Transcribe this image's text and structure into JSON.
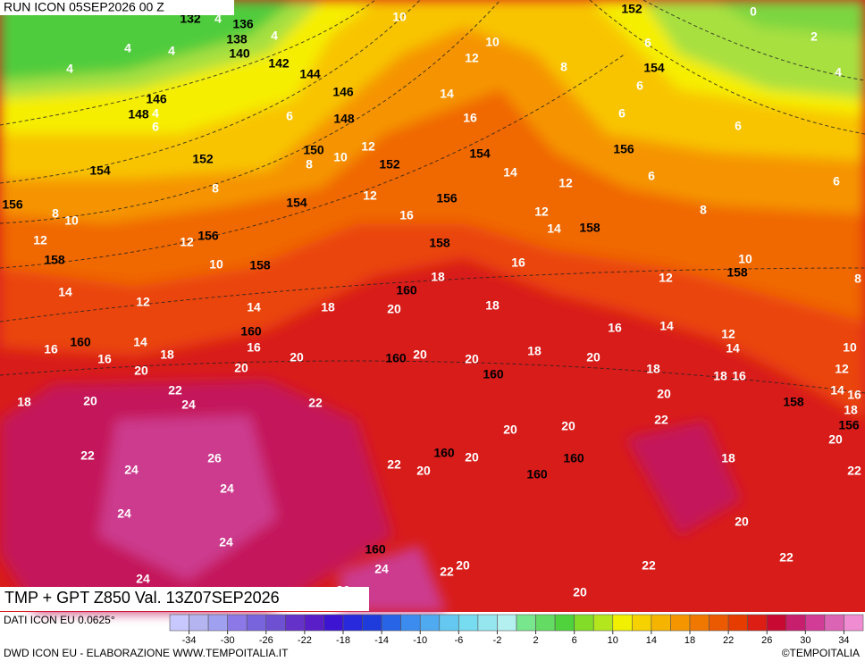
{
  "header": {
    "run": "RUN ICON 05SEP2026 00 Z"
  },
  "map": {
    "title": "TMP + GPT Z850 Val. 13Z07SEP2026",
    "geopotential_labels": [
      132,
      136,
      138,
      140,
      142,
      144,
      146,
      146,
      148,
      148,
      150,
      152,
      152,
      154,
      154,
      154,
      156,
      156,
      156,
      156,
      158,
      158,
      158,
      158,
      158,
      160,
      160,
      160,
      160,
      160,
      160,
      160,
      160,
      160,
      158,
      156,
      152,
      154
    ],
    "temperature_labels": [
      10,
      4,
      4,
      4,
      4,
      4,
      4,
      6,
      6,
      8,
      10,
      12,
      10,
      12,
      14,
      16,
      8,
      6,
      6,
      6,
      0,
      2,
      4,
      6,
      6,
      6,
      8,
      12,
      16,
      14,
      12,
      12,
      14,
      8,
      8,
      10,
      12,
      12,
      10,
      14,
      12,
      14,
      18,
      16,
      18,
      18,
      20,
      10,
      12,
      8,
      16,
      14,
      18,
      16,
      16,
      20,
      20,
      20,
      20,
      20,
      18,
      16,
      14,
      12,
      14,
      10,
      18,
      18,
      16,
      12,
      18,
      20,
      22,
      24,
      22,
      20,
      20,
      14,
      16,
      18,
      22,
      20,
      20,
      20,
      22,
      24,
      26,
      24,
      22,
      20,
      20,
      18,
      22,
      24,
      24,
      20,
      24,
      22,
      20,
      22,
      22,
      20,
      20,
      24
    ]
  },
  "colorbar": {
    "range": [
      -36,
      36
    ],
    "ticks": [
      -34,
      -30,
      -26,
      -22,
      -18,
      -14,
      -10,
      -6,
      -2,
      2,
      6,
      10,
      14,
      18,
      22,
      26,
      30,
      34
    ],
    "colors": [
      "#c8c8ff",
      "#b4b4f0",
      "#a0a0f0",
      "#8c78e6",
      "#7864dc",
      "#6e50d2",
      "#6432c8",
      "#5a1ec8",
      "#3c14d2",
      "#2828dc",
      "#1e3cdc",
      "#2864e6",
      "#3c8cf0",
      "#50aaf0",
      "#64c8f0",
      "#78dcf0",
      "#96e6f0",
      "#b4f0f0",
      "#78e68c",
      "#64dc64",
      "#50d23c",
      "#82dc28",
      "#b4e61e",
      "#f0f000",
      "#f5d200",
      "#f5b400",
      "#f59600",
      "#f07800",
      "#eb5a00",
      "#e63c00",
      "#dc1e14",
      "#c80a32",
      "#c81e6e",
      "#d23c96",
      "#dc64b4",
      "#f08cd2"
    ]
  },
  "footer": {
    "source": "DATI ICON EU 0.0625°",
    "credit": "DWD ICON EU - ELABORAZIONE WWW.TEMPOITALIA.IT",
    "brand": "©TEMPOITALIA"
  }
}
